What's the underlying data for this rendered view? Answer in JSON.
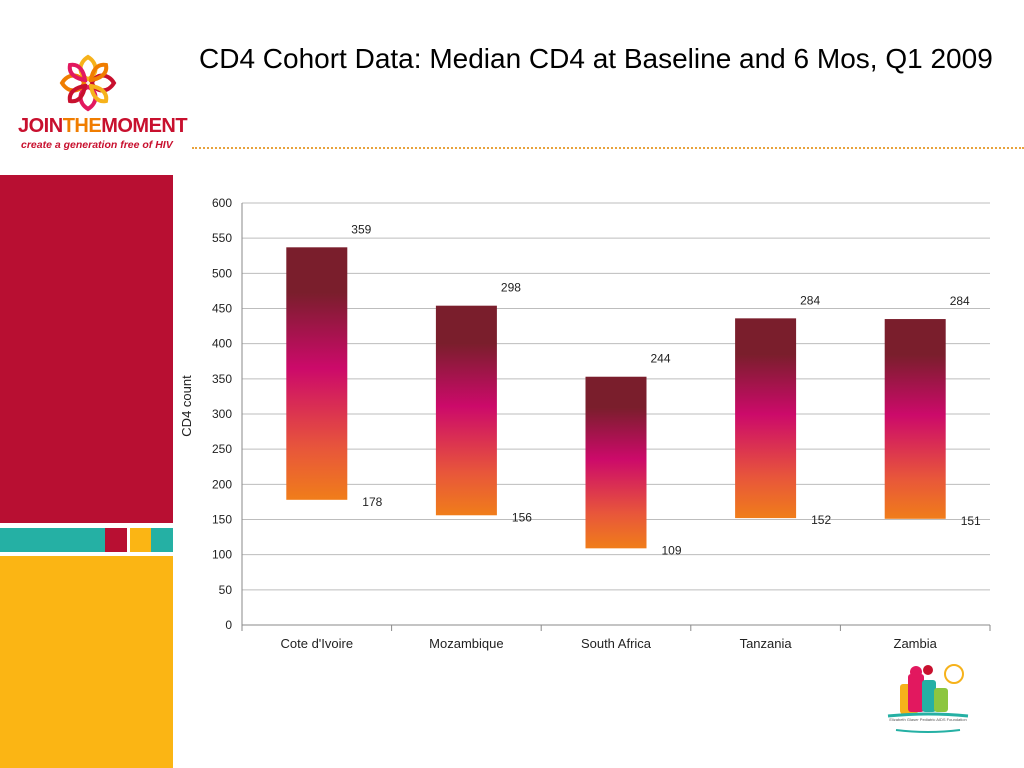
{
  "slide": {
    "title": "CD4 Cohort Data: Median CD4 at Baseline and 6 Mos, Q1 2009"
  },
  "logo": {
    "word_join": "JOIN",
    "word_the": "THE",
    "word_moment": "MOMENT",
    "tagline": "create a generation free of HIV"
  },
  "foundation_logo": {
    "caption": "Elizabeth Glaser Pediatric AIDS Foundation"
  },
  "colors": {
    "bar_top": "#7a1e2c",
    "bar_mid": "#cc0a6a",
    "bar_bottom": "#f07d1a",
    "accent_red": "#b80f32",
    "accent_teal": "#25b0a4",
    "accent_yellow": "#fbb514"
  },
  "chart_data": {
    "type": "bar",
    "title": "",
    "xlabel": "",
    "ylabel": "CD4 count",
    "ylim": [
      0,
      600
    ],
    "yticks": [
      0,
      50,
      100,
      150,
      200,
      250,
      300,
      350,
      400,
      450,
      500,
      550,
      600
    ],
    "grid": true,
    "categories": [
      "Cote d'Ivoire",
      "Mozambique",
      "South Africa",
      "Tanzania",
      "Zambia"
    ],
    "baseline": [
      178,
      156,
      109,
      152,
      151
    ],
    "increase": [
      359,
      298,
      244,
      284,
      284
    ],
    "stacked_top": [
      537,
      454,
      353,
      436,
      435
    ],
    "baseline_labels": [
      "178",
      "156",
      "109",
      "152",
      "151"
    ],
    "increase_labels": [
      "359",
      "298",
      "244",
      "284",
      "284"
    ]
  }
}
